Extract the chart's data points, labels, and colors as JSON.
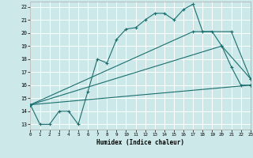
{
  "xlabel": "Humidex (Indice chaleur)",
  "bg_color": "#cce8e8",
  "grid_color": "#ffffff",
  "line_color": "#1a6e6e",
  "xlim": [
    0,
    23
  ],
  "ylim": [
    13,
    22
  ],
  "xticks": [
    0,
    1,
    2,
    3,
    4,
    5,
    6,
    7,
    8,
    9,
    10,
    11,
    12,
    13,
    14,
    15,
    16,
    17,
    18,
    19,
    20,
    21,
    22,
    23
  ],
  "yticks": [
    13,
    14,
    15,
    16,
    17,
    18,
    19,
    20,
    21,
    22
  ],
  "lines": [
    {
      "x": [
        0,
        1,
        2,
        3,
        4,
        5,
        6,
        7,
        8,
        9,
        10,
        11,
        12,
        13,
        14,
        15,
        16,
        17,
        18,
        19,
        20,
        21,
        22,
        23
      ],
      "y": [
        14.5,
        13,
        13,
        14,
        14,
        13,
        15.5,
        18,
        17.7,
        19.5,
        20.3,
        20.4,
        21.0,
        21.5,
        21.5,
        21.0,
        21.8,
        22.2,
        20.1,
        20.1,
        19.0,
        17.4,
        16.0,
        16.0
      ]
    },
    {
      "x": [
        0,
        23
      ],
      "y": [
        14.5,
        16.0
      ]
    },
    {
      "x": [
        0,
        20,
        23
      ],
      "y": [
        14.5,
        19.0,
        16.5
      ]
    },
    {
      "x": [
        0,
        17,
        21,
        23
      ],
      "y": [
        14.5,
        20.1,
        20.1,
        16.5
      ]
    }
  ]
}
